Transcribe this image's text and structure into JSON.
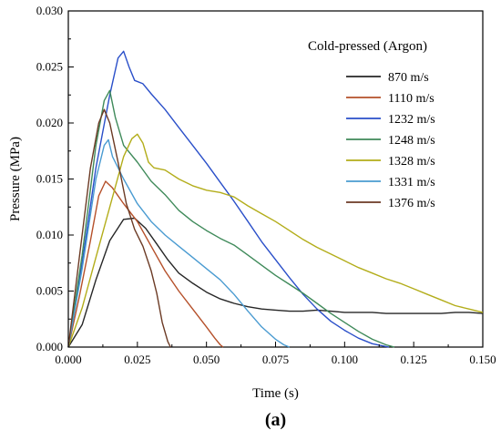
{
  "chart_data": {
    "type": "line",
    "panel_label": "(a)",
    "xlabel": "Time (s)",
    "ylabel": "Pressure (MPa)",
    "xlim": [
      0.0,
      0.15
    ],
    "ylim": [
      0.0,
      0.03
    ],
    "x_ticks": [
      "0.000",
      "0.025",
      "0.050",
      "0.075",
      "0.100",
      "0.125",
      "0.150"
    ],
    "y_ticks": [
      "0.000",
      "0.005",
      "0.010",
      "0.015",
      "0.020",
      "0.025",
      "0.030"
    ],
    "grid": false,
    "legend": {
      "title": "Cold-pressed (Argon)",
      "position": "top-right"
    },
    "series": [
      {
        "name": "870 m/s",
        "color": "#262626",
        "points": [
          [
            0,
            0
          ],
          [
            0.005,
            0.002
          ],
          [
            0.01,
            0.006
          ],
          [
            0.015,
            0.0095
          ],
          [
            0.02,
            0.0114
          ],
          [
            0.024,
            0.0115
          ],
          [
            0.028,
            0.0106
          ],
          [
            0.032,
            0.0092
          ],
          [
            0.036,
            0.0078
          ],
          [
            0.04,
            0.0066
          ],
          [
            0.045,
            0.0057
          ],
          [
            0.05,
            0.0049
          ],
          [
            0.055,
            0.0043
          ],
          [
            0.06,
            0.0039
          ],
          [
            0.065,
            0.0036
          ],
          [
            0.07,
            0.0034
          ],
          [
            0.075,
            0.0033
          ],
          [
            0.08,
            0.0032
          ],
          [
            0.085,
            0.0032
          ],
          [
            0.09,
            0.0033
          ],
          [
            0.095,
            0.0032
          ],
          [
            0.1,
            0.0031
          ],
          [
            0.105,
            0.0031
          ],
          [
            0.11,
            0.0031
          ],
          [
            0.115,
            0.003
          ],
          [
            0.12,
            0.003
          ],
          [
            0.125,
            0.003
          ],
          [
            0.13,
            0.003
          ],
          [
            0.135,
            0.003
          ],
          [
            0.14,
            0.0031
          ],
          [
            0.145,
            0.0031
          ],
          [
            0.15,
            0.003
          ]
        ]
      },
      {
        "name": "1110 m/s",
        "color": "#b5502a",
        "points": [
          [
            0,
            0
          ],
          [
            0.004,
            0.0045
          ],
          [
            0.008,
            0.0095
          ],
          [
            0.011,
            0.0135
          ],
          [
            0.0135,
            0.0148
          ],
          [
            0.016,
            0.0142
          ],
          [
            0.02,
            0.0128
          ],
          [
            0.025,
            0.0112
          ],
          [
            0.03,
            0.009
          ],
          [
            0.035,
            0.0068
          ],
          [
            0.04,
            0.005
          ],
          [
            0.045,
            0.0034
          ],
          [
            0.05,
            0.0018
          ],
          [
            0.053,
            0.0008
          ],
          [
            0.055,
            0.0002
          ],
          [
            0.056,
            0
          ]
        ]
      },
      {
        "name": "1232 m/s",
        "color": "#2a4fc9",
        "points": [
          [
            0,
            0
          ],
          [
            0.005,
            0.0075
          ],
          [
            0.01,
            0.016
          ],
          [
            0.015,
            0.0225
          ],
          [
            0.018,
            0.0258
          ],
          [
            0.02,
            0.0264
          ],
          [
            0.022,
            0.025
          ],
          [
            0.024,
            0.0238
          ],
          [
            0.027,
            0.0235
          ],
          [
            0.03,
            0.0226
          ],
          [
            0.035,
            0.0212
          ],
          [
            0.04,
            0.0196
          ],
          [
            0.045,
            0.018
          ],
          [
            0.05,
            0.0164
          ],
          [
            0.055,
            0.0147
          ],
          [
            0.06,
            0.013
          ],
          [
            0.065,
            0.0112
          ],
          [
            0.07,
            0.0094
          ],
          [
            0.075,
            0.0078
          ],
          [
            0.08,
            0.0062
          ],
          [
            0.085,
            0.0047
          ],
          [
            0.09,
            0.0034
          ],
          [
            0.095,
            0.0023
          ],
          [
            0.1,
            0.0015
          ],
          [
            0.105,
            0.0008
          ],
          [
            0.11,
            0.0003
          ],
          [
            0.114,
            0.0001
          ],
          [
            0.116,
            0
          ]
        ]
      },
      {
        "name": "1248 m/s",
        "color": "#3f8a5a",
        "points": [
          [
            0,
            0
          ],
          [
            0.005,
            0.0082
          ],
          [
            0.01,
            0.018
          ],
          [
            0.013,
            0.022
          ],
          [
            0.015,
            0.0229
          ],
          [
            0.017,
            0.0205
          ],
          [
            0.02,
            0.018
          ],
          [
            0.025,
            0.0165
          ],
          [
            0.03,
            0.0148
          ],
          [
            0.035,
            0.0136
          ],
          [
            0.04,
            0.0122
          ],
          [
            0.045,
            0.0112
          ],
          [
            0.05,
            0.0104
          ],
          [
            0.055,
            0.0097
          ],
          [
            0.06,
            0.0091
          ],
          [
            0.065,
            0.0082
          ],
          [
            0.07,
            0.0073
          ],
          [
            0.075,
            0.0064
          ],
          [
            0.08,
            0.0056
          ],
          [
            0.085,
            0.0048
          ],
          [
            0.09,
            0.0039
          ],
          [
            0.095,
            0.003
          ],
          [
            0.1,
            0.0022
          ],
          [
            0.105,
            0.0014
          ],
          [
            0.11,
            0.0007
          ],
          [
            0.115,
            0.0002
          ],
          [
            0.118,
            0
          ]
        ]
      },
      {
        "name": "1328 m/s",
        "color": "#b3ad1a",
        "points": [
          [
            0,
            0
          ],
          [
            0.005,
            0.0035
          ],
          [
            0.01,
            0.008
          ],
          [
            0.015,
            0.0125
          ],
          [
            0.02,
            0.017
          ],
          [
            0.023,
            0.0186
          ],
          [
            0.025,
            0.019
          ],
          [
            0.027,
            0.0182
          ],
          [
            0.029,
            0.0165
          ],
          [
            0.031,
            0.016
          ],
          [
            0.035,
            0.0158
          ],
          [
            0.04,
            0.015
          ],
          [
            0.045,
            0.0144
          ],
          [
            0.05,
            0.014
          ],
          [
            0.055,
            0.0138
          ],
          [
            0.06,
            0.0134
          ],
          [
            0.065,
            0.0126
          ],
          [
            0.07,
            0.0119
          ],
          [
            0.075,
            0.0112
          ],
          [
            0.08,
            0.0104
          ],
          [
            0.085,
            0.0096
          ],
          [
            0.09,
            0.0089
          ],
          [
            0.095,
            0.0083
          ],
          [
            0.1,
            0.0077
          ],
          [
            0.105,
            0.0071
          ],
          [
            0.11,
            0.0066
          ],
          [
            0.115,
            0.0061
          ],
          [
            0.12,
            0.0057
          ],
          [
            0.125,
            0.0052
          ],
          [
            0.13,
            0.0047
          ],
          [
            0.135,
            0.0042
          ],
          [
            0.14,
            0.0037
          ],
          [
            0.145,
            0.0034
          ],
          [
            0.15,
            0.0031
          ]
        ]
      },
      {
        "name": "1331 m/s",
        "color": "#4a9bd1",
        "points": [
          [
            0,
            0
          ],
          [
            0.005,
            0.007
          ],
          [
            0.01,
            0.015
          ],
          [
            0.013,
            0.018
          ],
          [
            0.0145,
            0.0185
          ],
          [
            0.016,
            0.017
          ],
          [
            0.02,
            0.015
          ],
          [
            0.025,
            0.0128
          ],
          [
            0.03,
            0.0112
          ],
          [
            0.035,
            0.01
          ],
          [
            0.04,
            0.009
          ],
          [
            0.045,
            0.008
          ],
          [
            0.05,
            0.007
          ],
          [
            0.055,
            0.006
          ],
          [
            0.06,
            0.0047
          ],
          [
            0.065,
            0.0032
          ],
          [
            0.07,
            0.0018
          ],
          [
            0.075,
            0.0007
          ],
          [
            0.078,
            0.0002
          ],
          [
            0.08,
            0
          ]
        ]
      },
      {
        "name": "1376 m/s",
        "color": "#6b3a24",
        "points": [
          [
            0,
            0
          ],
          [
            0.004,
            0.008
          ],
          [
            0.008,
            0.016
          ],
          [
            0.011,
            0.02
          ],
          [
            0.013,
            0.0212
          ],
          [
            0.015,
            0.02
          ],
          [
            0.018,
            0.0165
          ],
          [
            0.021,
            0.0128
          ],
          [
            0.024,
            0.0105
          ],
          [
            0.027,
            0.009
          ],
          [
            0.03,
            0.0068
          ],
          [
            0.032,
            0.0048
          ],
          [
            0.034,
            0.0022
          ],
          [
            0.036,
            0.0005
          ],
          [
            0.037,
            0
          ]
        ]
      }
    ]
  }
}
